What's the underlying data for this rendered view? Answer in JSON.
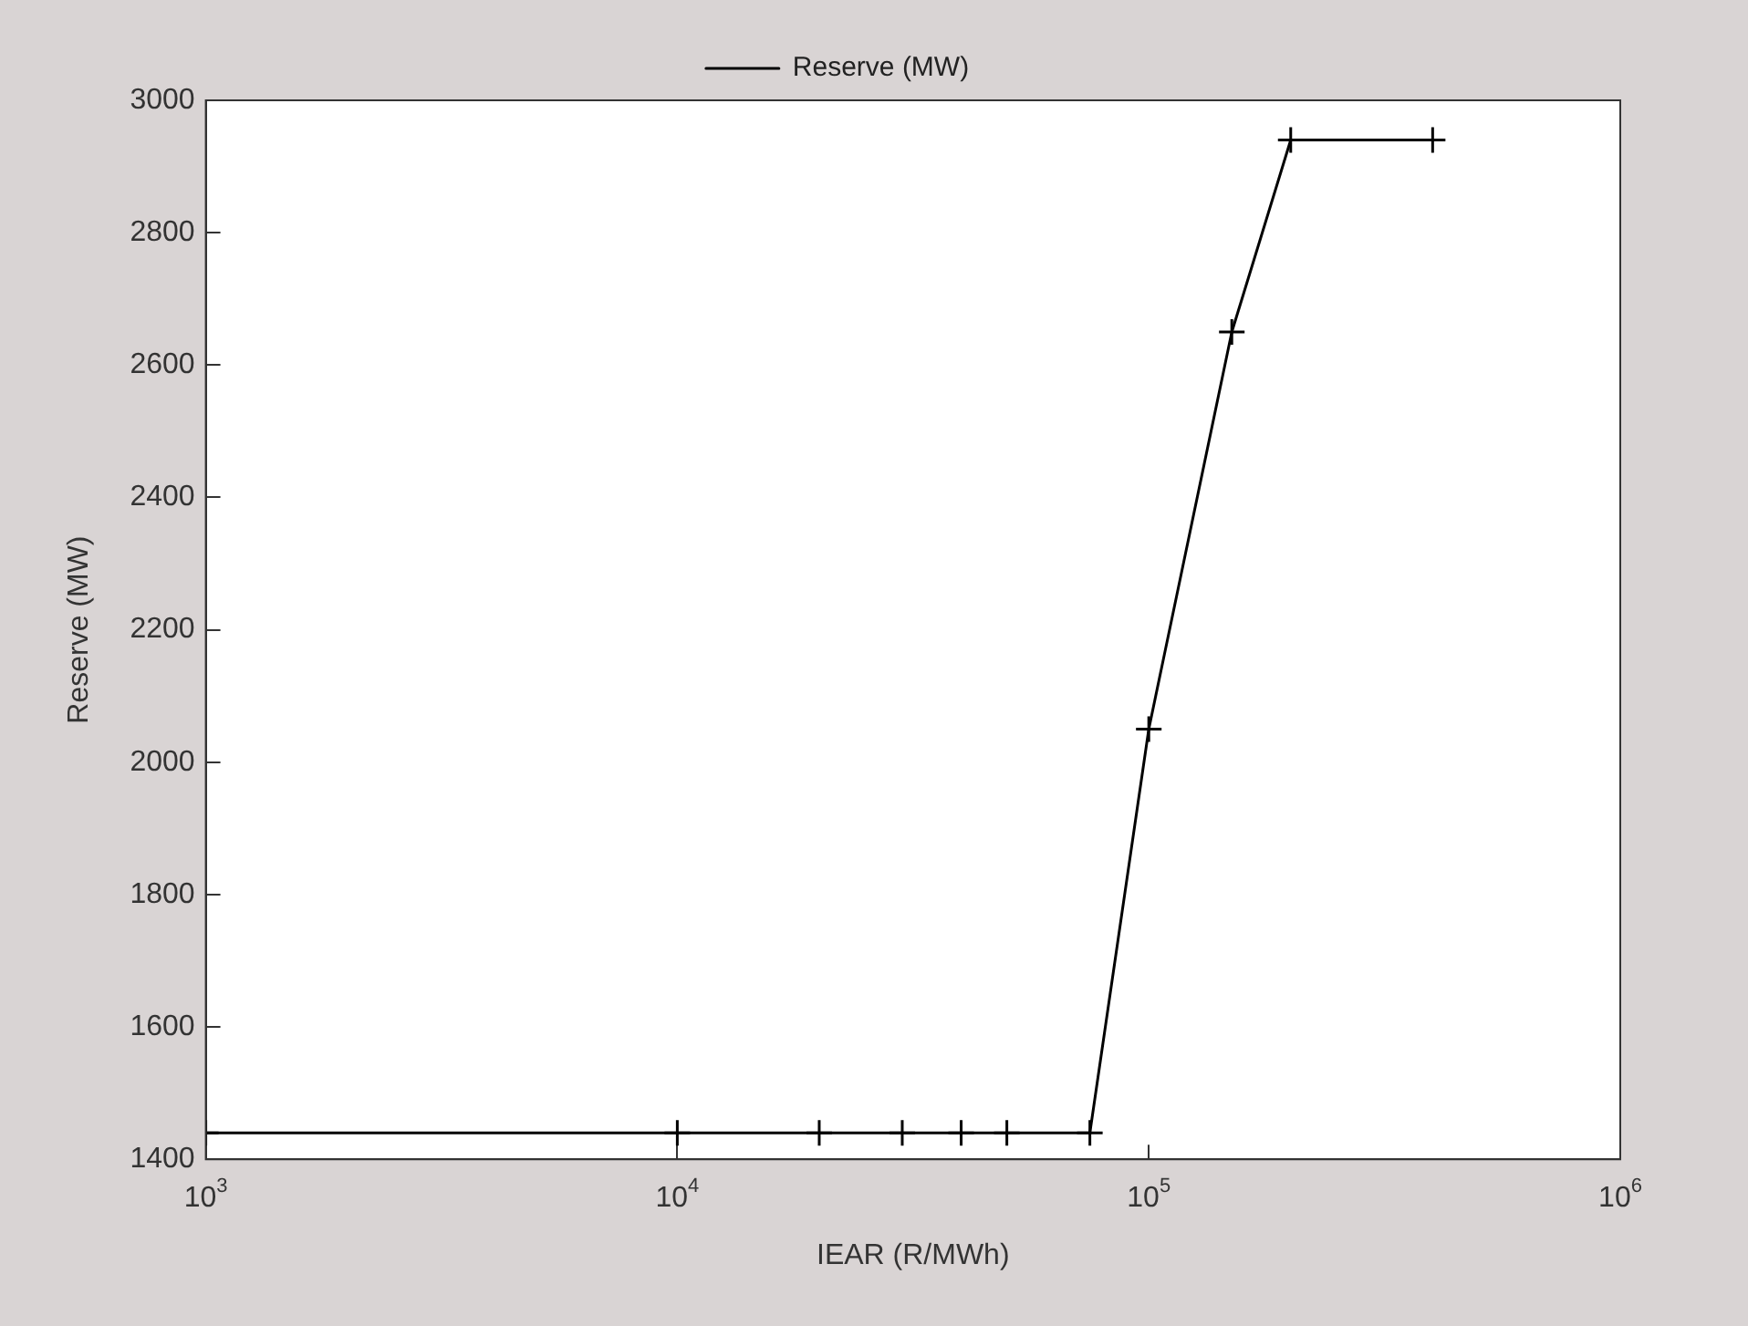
{
  "chart_data": {
    "type": "line",
    "xlabel": "IEAR (R/MWh)",
    "ylabel": "Reserve (MW)",
    "log": "x",
    "x": [
      1000,
      10000,
      20000,
      30000,
      40000,
      50000,
      75000,
      100000,
      150000,
      200000,
      400000
    ],
    "series": [
      {
        "name": "Reserve (MW)",
        "color": "#000000",
        "values": [
          1440,
          1440,
          1440,
          1440,
          1440,
          1440,
          1440,
          2050,
          2650,
          2940,
          2940
        ]
      }
    ],
    "xlim": [
      1000,
      1000000
    ],
    "xticks": [
      {
        "value": 1000,
        "label": "10$^{3}$"
      },
      {
        "value": 10000,
        "label": "10$^{4}$"
      },
      {
        "value": 100000,
        "label": "10$^{5}$"
      },
      {
        "value": 1000000,
        "label": "10$^{6}$"
      }
    ],
    "ylim": [
      1400,
      3000
    ],
    "yticks": [
      1400,
      1600,
      1800,
      2000,
      2200,
      2400,
      2600,
      2800,
      3000
    ],
    "grid": false,
    "legend": "top",
    "marker": "cross",
    "line_style": "solid"
  }
}
